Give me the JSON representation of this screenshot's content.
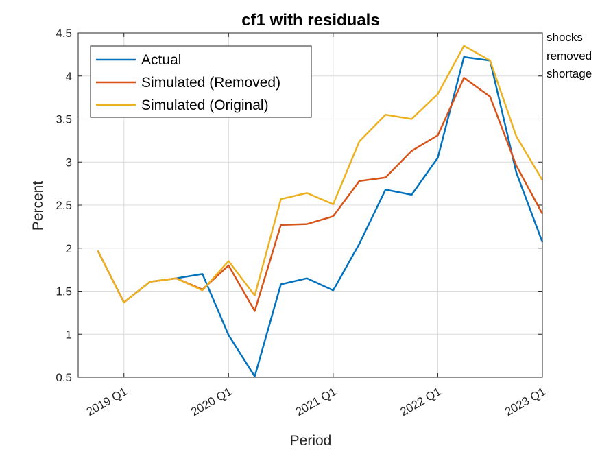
{
  "chart_data": {
    "type": "line",
    "title": "cf1 with residuals",
    "xlabel": "Period",
    "ylabel": "Percent",
    "ylim": [
      0.5,
      4.5
    ],
    "yticks": [
      "0.5",
      "1",
      "1.5",
      "2",
      "2.5",
      "3",
      "3.5",
      "4",
      "4.5"
    ],
    "ytick_values": [
      0.5,
      1,
      1.5,
      2,
      2.5,
      3,
      3.5,
      4,
      4.5
    ],
    "x": [
      "2018 Q4",
      "2019 Q1",
      "2019 Q2",
      "2019 Q3",
      "2019 Q4",
      "2020 Q1",
      "2020 Q2",
      "2020 Q3",
      "2020 Q4",
      "2021 Q1",
      "2021 Q2",
      "2021 Q3",
      "2021 Q4",
      "2022 Q1",
      "2022 Q2",
      "2022 Q3",
      "2022 Q4",
      "2023 Q1"
    ],
    "xticks": [
      "2019 Q1",
      "2020 Q1",
      "2021 Q1",
      "2022 Q1",
      "2023 Q1"
    ],
    "grid": true,
    "legend_position": "top-left",
    "series": [
      {
        "name": "Actual",
        "color": "#0072BD",
        "values": [
          1.97,
          1.37,
          1.61,
          1.65,
          1.7,
          0.99,
          0.51,
          1.58,
          1.65,
          1.51,
          2.05,
          2.68,
          2.62,
          3.05,
          4.22,
          4.18,
          2.88,
          2.07
        ]
      },
      {
        "name": "Simulated (Removed)",
        "color": "#D95319",
        "values": [
          1.97,
          1.37,
          1.61,
          1.65,
          1.52,
          1.8,
          1.27,
          2.27,
          2.28,
          2.37,
          2.78,
          2.82,
          3.13,
          3.31,
          3.98,
          3.76,
          2.96,
          2.4
        ]
      },
      {
        "name": "Simulated (Original)",
        "color": "#EDB120",
        "values": [
          1.97,
          1.37,
          1.61,
          1.65,
          1.51,
          1.85,
          1.45,
          2.57,
          2.64,
          2.51,
          3.24,
          3.55,
          3.5,
          3.79,
          4.35,
          4.18,
          3.3,
          2.79
        ]
      }
    ],
    "annotation": [
      "shocks",
      "removed",
      "shortage"
    ]
  }
}
